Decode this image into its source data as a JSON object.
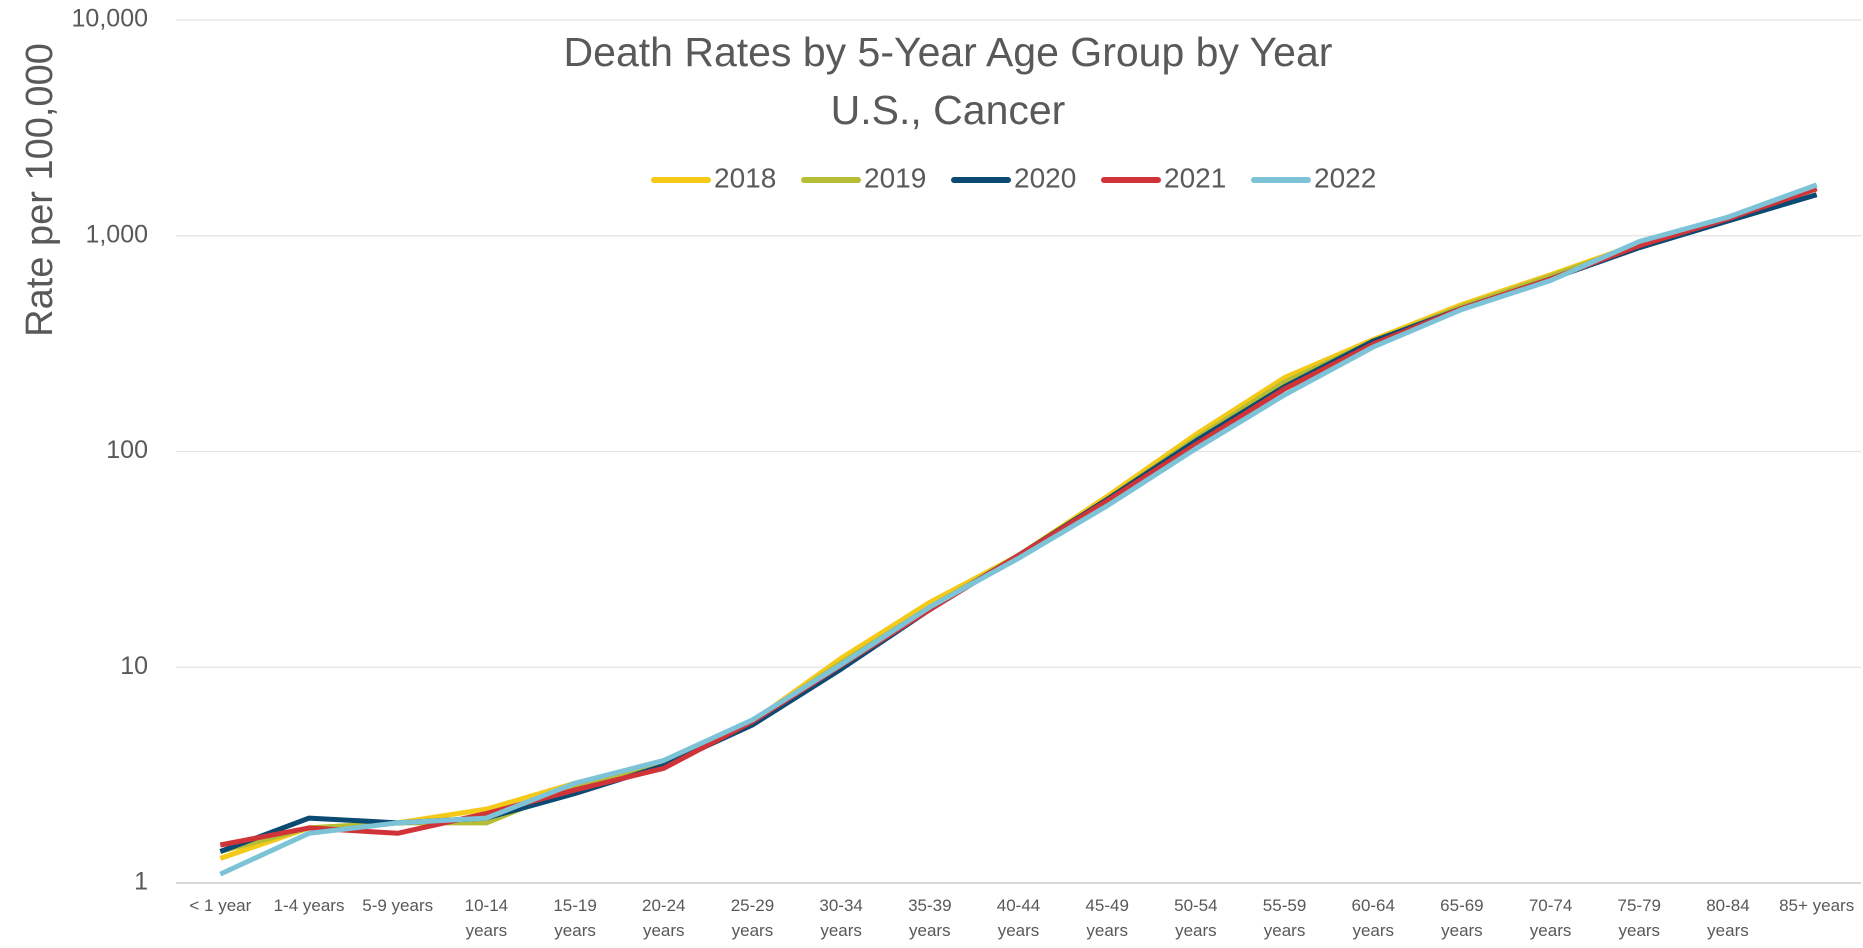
{
  "chart_data": {
    "type": "line",
    "title": "Death Rates by 5-Year Age Group by Year",
    "subtitle": "U.S., Cancer",
    "y_label": "Rate per 100,000",
    "y_scale": "log",
    "grid": true,
    "legend": "top",
    "categories": [
      "< 1 year",
      "1-4 years",
      "5-9 years",
      "10-14 years",
      "15-19 years",
      "20-24 years",
      "25-29 years",
      "30-34 years",
      "35-39 years",
      "40-44 years",
      "45-49 years",
      "50-54 years",
      "55-59 years",
      "60-64 years",
      "65-69 years",
      "70-74 years",
      "75-79 years",
      "80-84 years",
      "85+ years"
    ],
    "ylim": [
      1,
      10000
    ],
    "yticks": [
      1,
      10,
      100,
      {
        "value": 1000,
        "label": "1,000"
      },
      {
        "value": 10000,
        "label": "10,000"
      }
    ],
    "series": [
      {
        "name": "2018",
        "color": "#f5c918",
        "values": [
          1.3,
          1.8,
          1.9,
          2.2,
          2.9,
          3.6,
          5.6,
          11,
          20,
          33,
          62,
          120,
          220,
          330,
          480,
          660,
          920,
          1200,
          1650
        ]
      },
      {
        "name": "2019",
        "color": "#b5bd34",
        "values": [
          1.4,
          1.8,
          1.9,
          1.9,
          2.8,
          3.6,
          5.6,
          10.5,
          19,
          33,
          60,
          115,
          210,
          325,
          470,
          650,
          910,
          1200,
          1650
        ]
      },
      {
        "name": "2020",
        "color": "#0b4a72",
        "values": [
          1.4,
          2.0,
          1.9,
          2.0,
          2.6,
          3.5,
          5.4,
          9.8,
          18.5,
          33,
          60,
          112,
          200,
          325,
          460,
          630,
          880,
          1170,
          1550
        ]
      },
      {
        "name": "2021",
        "color": "#d03438",
        "values": [
          1.5,
          1.8,
          1.7,
          2.1,
          2.7,
          3.4,
          5.6,
          10.2,
          18.5,
          33,
          59,
          108,
          195,
          315,
          460,
          630,
          900,
          1200,
          1650
        ]
      },
      {
        "name": "2022",
        "color": "#7dc3d8",
        "values": [
          1.1,
          1.7,
          1.9,
          2.0,
          2.9,
          3.7,
          5.7,
          10.3,
          19,
          32,
          56,
          103,
          183,
          305,
          455,
          620,
          940,
          1220,
          1720
        ]
      }
    ]
  }
}
